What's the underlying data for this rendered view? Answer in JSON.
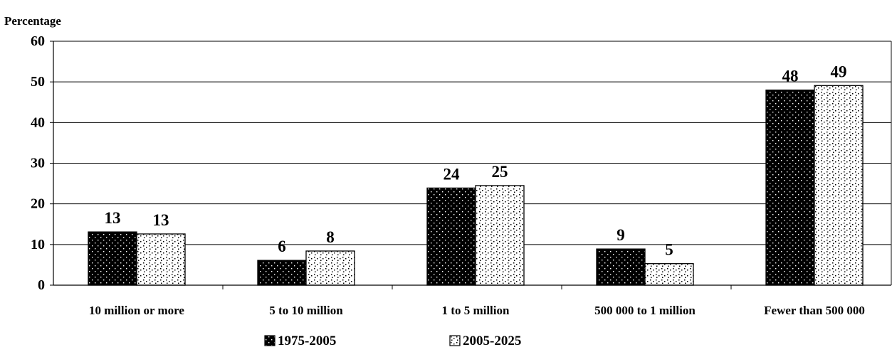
{
  "chart_data": {
    "type": "bar",
    "ylabel": "Percentage",
    "ylim": [
      0,
      60
    ],
    "yticks": [
      0,
      10,
      20,
      30,
      40,
      50,
      60
    ],
    "grid": true,
    "legend_position": "bottom",
    "categories": [
      "10 million or more",
      "5 to 10 million",
      "1 to 5 million",
      "500 000 to 1 million",
      "Fewer than 500 000"
    ],
    "series": [
      {
        "name": "1975-2005",
        "values": [
          13.1,
          6.1,
          23.9,
          8.9,
          48.0
        ],
        "labels": [
          "13",
          "6",
          "24",
          "9",
          "48"
        ],
        "pattern": "dark-dotted",
        "color": "#000000"
      },
      {
        "name": "2005-2025",
        "values": [
          12.6,
          8.4,
          24.5,
          5.3,
          49.1
        ],
        "labels": [
          "13",
          "8",
          "25",
          "5",
          "49"
        ],
        "pattern": "light-dotted",
        "color": "#ffffff"
      }
    ]
  }
}
